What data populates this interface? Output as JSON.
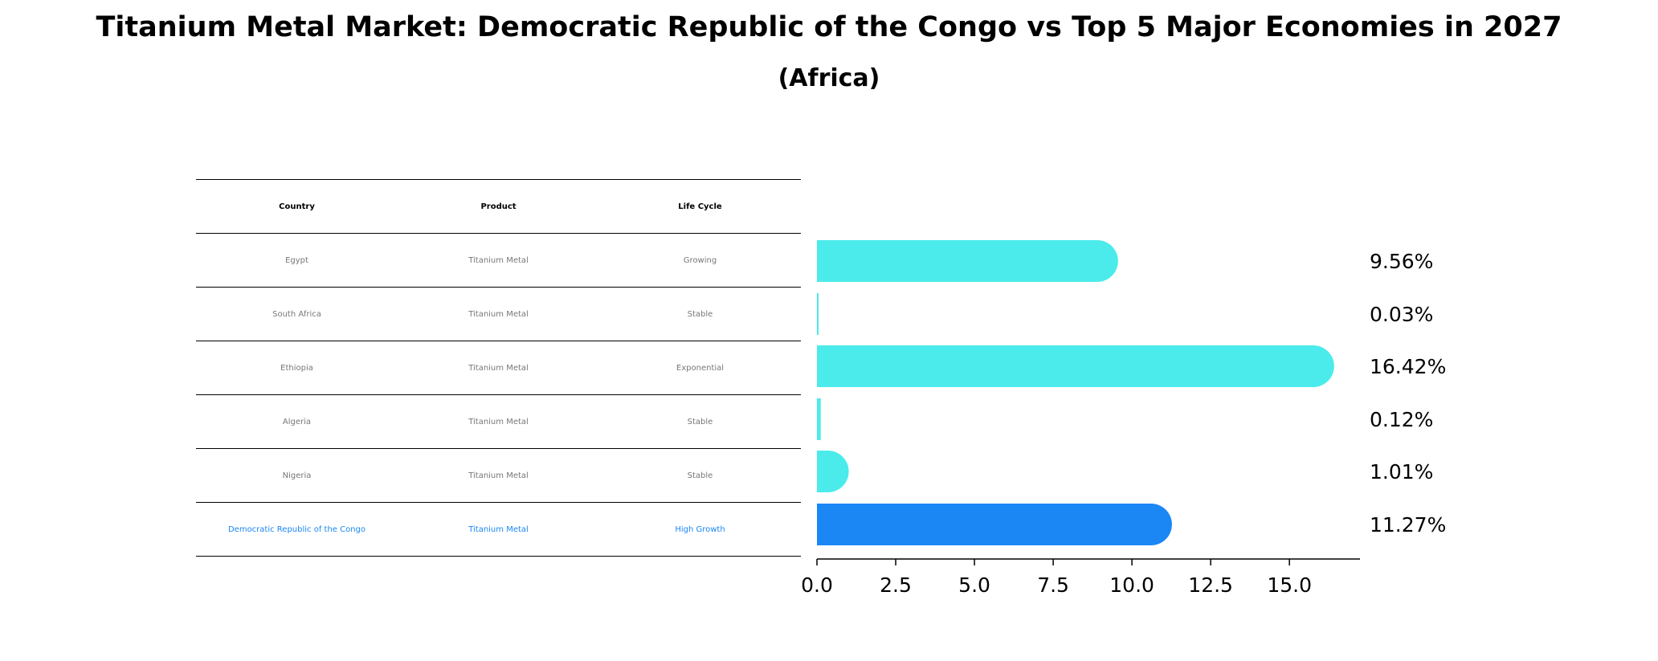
{
  "chart_data": {
    "type": "bar",
    "orientation": "horizontal",
    "title": "Titanium Metal Market: Democratic Republic of the Congo vs Top 5 Major Economies in 2027",
    "subtitle": "(Africa)",
    "table": {
      "columns": [
        "Country",
        "Product",
        "Life Cycle"
      ],
      "rows": [
        [
          "Egypt",
          "Titanium Metal",
          "Growing"
        ],
        [
          "South Africa",
          "Titanium Metal",
          "Stable"
        ],
        [
          "Ethiopia",
          "Titanium Metal",
          "Exponential"
        ],
        [
          "Algeria",
          "Titanium Metal",
          "Stable"
        ],
        [
          "Nigeria",
          "Titanium Metal",
          "Stable"
        ],
        [
          "Democratic Republic of the Congo",
          "Titanium Metal",
          "High Growth"
        ]
      ],
      "highlight_row": 5
    },
    "categories": [
      "Egypt",
      "South Africa",
      "Ethiopia",
      "Algeria",
      "Nigeria",
      "Democratic Republic of the Congo"
    ],
    "values": [
      9.56,
      0.03,
      16.42,
      0.12,
      1.01,
      11.27
    ],
    "value_labels": [
      "9.56%",
      "0.03%",
      "16.42%",
      "0.12%",
      "1.01%",
      "11.27%"
    ],
    "xticks": [
      "0.0",
      "2.5",
      "5.0",
      "7.5",
      "10.0",
      "12.5",
      "15.0"
    ],
    "xlim": [
      0,
      17.24
    ],
    "colors": {
      "default": "#4cebeb",
      "highlight": "#1a87f5"
    },
    "grid": false
  }
}
